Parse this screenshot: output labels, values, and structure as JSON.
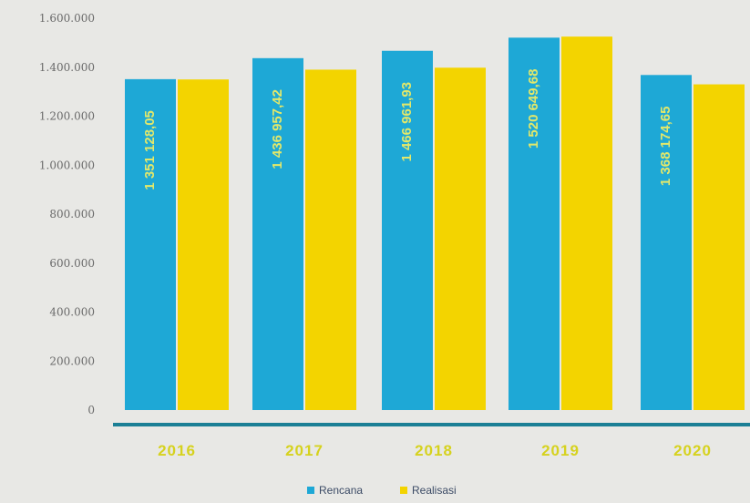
{
  "chart_data": {
    "type": "bar",
    "categories": [
      "2016",
      "2017",
      "2018",
      "2019",
      "2020"
    ],
    "series": [
      {
        "name": "Rencana",
        "values": [
          1351128.05,
          1436957.42,
          1466961.93,
          1520649.68,
          1368174.65
        ],
        "color": "#1ea8d6",
        "labels": [
          "1 351 128,05",
          "1 436 957,42",
          "1 466 961,93",
          "1 520 649,68",
          "1 368 174,65"
        ]
      },
      {
        "name": "Realisasi",
        "values": [
          1350000,
          1390000,
          1398000,
          1525000,
          1330000
        ],
        "color": "#f3d400"
      }
    ],
    "yticks": [
      "1.600.000",
      "1.400.000",
      "1.200.000",
      "1.000.000",
      "800.000",
      "600.000",
      "400.000",
      "200.000",
      "0"
    ],
    "ylim": [
      0,
      1600000
    ],
    "xlabel": "",
    "ylabel": "",
    "legend_position": "bottom-center",
    "grid": false,
    "axis_line_color": "#1b7f95"
  }
}
